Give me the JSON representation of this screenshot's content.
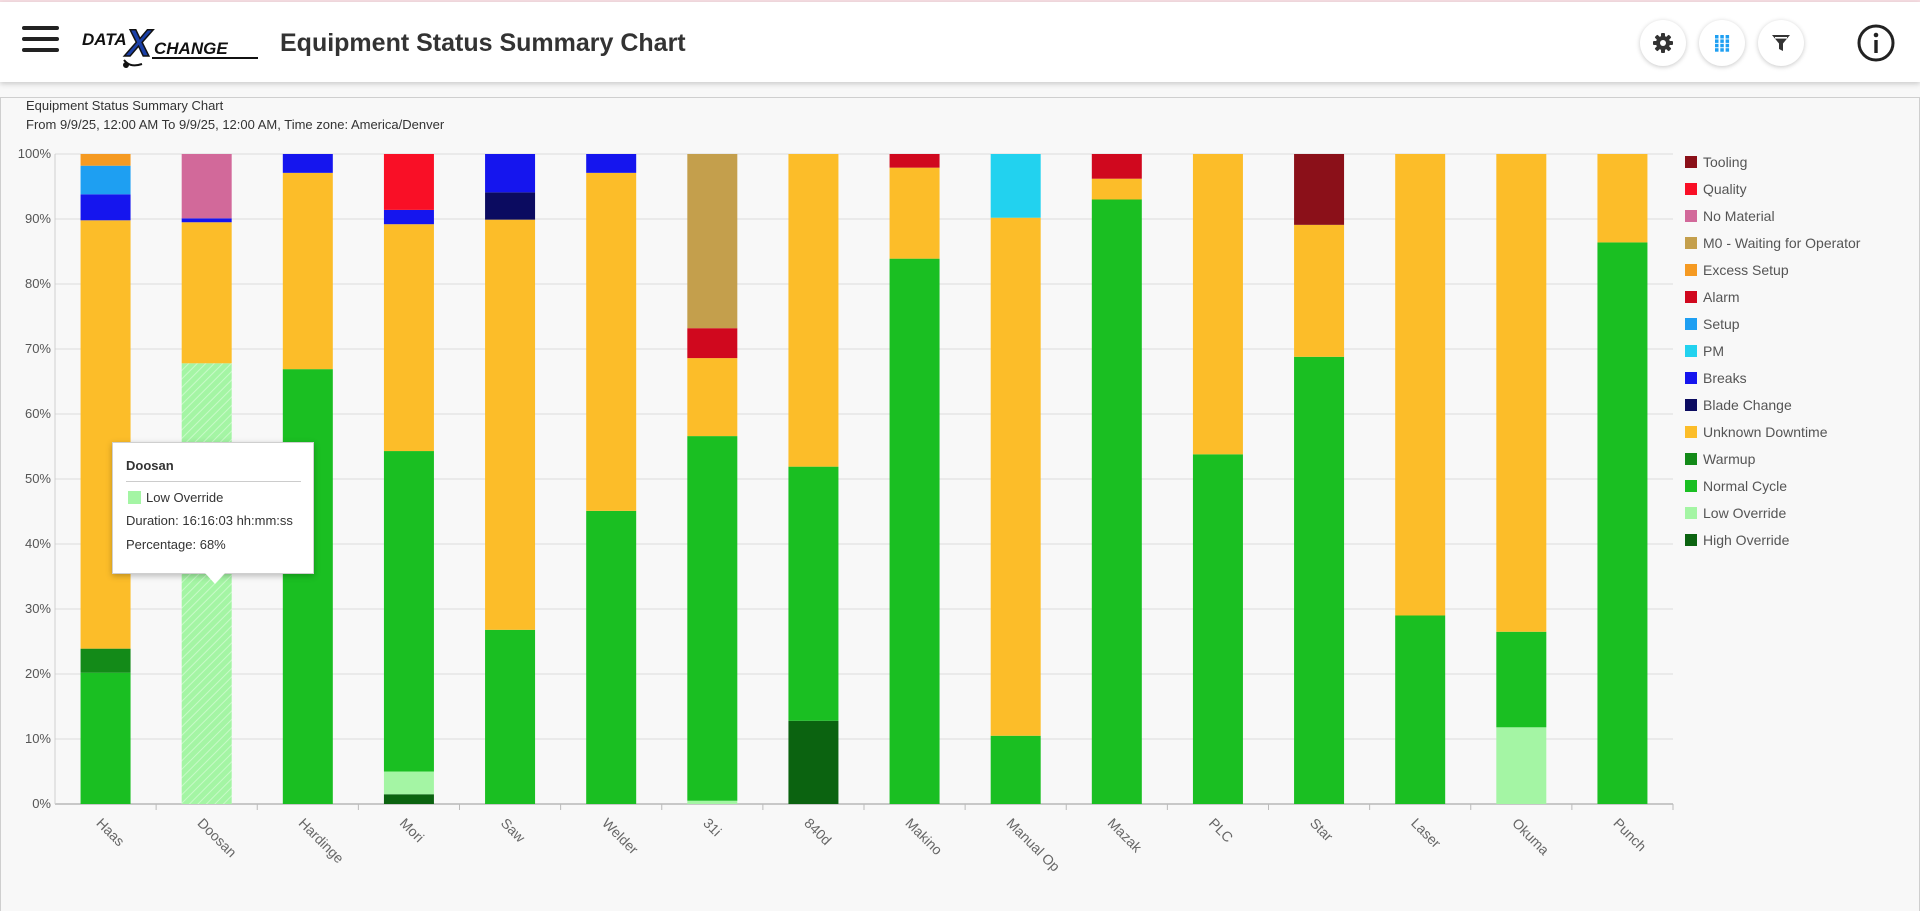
{
  "header": {
    "title": "Equipment Status Summary Chart",
    "logo_text_left": "DATA",
    "logo_text_right": "CHANGE",
    "logo_letter": "X",
    "buttons": [
      {
        "name": "settings-button",
        "icon": "gear-icon"
      },
      {
        "name": "grid-button",
        "icon": "grid-icon"
      },
      {
        "name": "filter-button",
        "icon": "filter-icon"
      }
    ],
    "info_icon": "info-icon"
  },
  "chart_panel": {
    "title": "Equipment Status Summary Chart",
    "subtitle": "From 9/9/25, 12:00 AM To 9/9/25, 12:00 AM, Time zone: America/Denver"
  },
  "tooltip": {
    "title": "Doosan",
    "series": "Low Override",
    "series_color": "#a4f5a4",
    "duration": "Duration: 16:16:03 hh:mm:ss",
    "percentage": "Percentage: 68%"
  },
  "chart_data": {
    "type": "bar",
    "stacked": true,
    "title": "",
    "xlabel": "",
    "ylabel": "",
    "ylim": [
      0,
      100
    ],
    "yticks": [
      "0%",
      "10%",
      "20%",
      "30%",
      "40%",
      "50%",
      "60%",
      "70%",
      "80%",
      "90%",
      "100%"
    ],
    "grid": true,
    "legend_position": "right",
    "categories": [
      "Haas",
      "Doosan",
      "Hardinge",
      "Mori",
      "Saw",
      "Welder",
      "31i",
      "840d",
      "Makino",
      "Manual Op",
      "Mazak",
      "PLC",
      "Star",
      "Laser",
      "Okuma",
      "Punch"
    ],
    "series": [
      {
        "name": "High Override",
        "color": "#0b6310",
        "values": [
          0,
          0,
          0,
          1.5,
          0,
          0,
          0,
          12.8,
          0,
          0,
          0,
          0,
          0,
          0,
          0,
          0
        ]
      },
      {
        "name": "Low Override",
        "color": "#a4f5a4",
        "values": [
          0,
          67.8,
          0,
          3.5,
          0,
          0,
          0.5,
          0,
          0,
          0,
          0,
          0,
          0,
          0,
          11.8,
          0
        ]
      },
      {
        "name": "Normal Cycle",
        "color": "#1abf22",
        "values": [
          20.2,
          0,
          66.9,
          49.3,
          26.8,
          45.1,
          56.1,
          39.1,
          83.9,
          10.5,
          93.0,
          53.8,
          68.8,
          29.0,
          14.7,
          86.4
        ]
      },
      {
        "name": "Warmup",
        "color": "#138a18",
        "values": [
          3.7,
          0,
          0,
          0,
          0,
          0,
          0,
          0,
          0,
          0,
          0,
          0,
          0,
          0,
          0,
          0
        ]
      },
      {
        "name": "Unknown Downtime",
        "color": "#fcbd29",
        "values": [
          65.9,
          21.7,
          30.2,
          34.9,
          63.1,
          52.0,
          12.0,
          48.1,
          14.0,
          79.7,
          3.2,
          46.2,
          20.3,
          71.0,
          73.5,
          13.6
        ]
      },
      {
        "name": "Blade Change",
        "color": "#0b0b60",
        "values": [
          0,
          0,
          0,
          0,
          4.2,
          0,
          0,
          0,
          0,
          0,
          0,
          0,
          0,
          0,
          0,
          0
        ]
      },
      {
        "name": "Breaks",
        "color": "#1515ee",
        "values": [
          4.0,
          0.6,
          2.9,
          2.2,
          5.9,
          2.9,
          0,
          0,
          0,
          0,
          0,
          0,
          0,
          0,
          0,
          0
        ]
      },
      {
        "name": "PM",
        "color": "#22d2ef",
        "values": [
          0,
          0,
          0,
          0,
          0,
          0,
          0,
          0,
          0,
          9.8,
          0,
          0,
          0,
          0,
          0,
          0
        ]
      },
      {
        "name": "Setup",
        "color": "#1e9ff2",
        "values": [
          4.4,
          0,
          0,
          0,
          0,
          0,
          0,
          0,
          0,
          0,
          0,
          0,
          0,
          0,
          0,
          0
        ]
      },
      {
        "name": "Alarm",
        "color": "#d0081e",
        "values": [
          0,
          0,
          0,
          0,
          0,
          0,
          4.6,
          0,
          2.1,
          0,
          3.8,
          0,
          0,
          0,
          0,
          0
        ]
      },
      {
        "name": "Excess Setup",
        "color": "#f59a22",
        "values": [
          1.8,
          0,
          0,
          0,
          0,
          0,
          0,
          0,
          0,
          0,
          0,
          0,
          0,
          0,
          0,
          0
        ]
      },
      {
        "name": "M0 - Waiting for Operator",
        "color": "#c49f4c",
        "values": [
          0,
          0,
          0,
          0,
          0,
          0,
          26.8,
          0,
          0,
          0,
          0,
          0,
          0,
          0,
          0,
          0
        ]
      },
      {
        "name": "No Material",
        "color": "#d2699a",
        "values": [
          0,
          9.9,
          0,
          0,
          0,
          0,
          0,
          0,
          0,
          0,
          0,
          0,
          0,
          0,
          0,
          0
        ]
      },
      {
        "name": "Quality",
        "color": "#f90f26",
        "values": [
          0,
          0,
          0,
          8.6,
          0,
          0,
          0,
          0,
          0,
          0,
          0,
          0,
          0,
          0,
          0,
          0
        ]
      },
      {
        "name": "Tooling",
        "color": "#8b1019",
        "values": [
          0,
          0,
          0,
          0,
          0,
          0,
          0,
          0,
          0,
          0,
          0,
          0,
          10.9,
          0,
          0,
          0
        ]
      }
    ],
    "legend": [
      "Tooling",
      "Quality",
      "No Material",
      "M0 - Waiting for Operator",
      "Excess Setup",
      "Alarm",
      "Setup",
      "PM",
      "Breaks",
      "Blade Change",
      "Unknown Downtime",
      "Warmup",
      "Normal Cycle",
      "Low Override",
      "High Override"
    ],
    "highlighted": {
      "category": "Doosan",
      "series": "Low Override"
    }
  }
}
